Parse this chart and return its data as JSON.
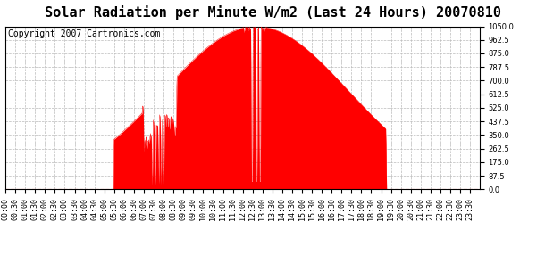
{
  "title": "Solar Radiation per Minute W/m2 (Last 24 Hours) 20070810",
  "copyright_text": "Copyright 2007 Cartronics.com",
  "fill_color": "#FF0000",
  "line_color": "#FF0000",
  "background_color": "#FFFFFF",
  "grid_color": "#BBBBBB",
  "dashed_line_color": "#FF0000",
  "ylim": [
    0.0,
    1050.0
  ],
  "yticks": [
    0.0,
    87.5,
    175.0,
    262.5,
    350.0,
    437.5,
    525.0,
    612.5,
    700.0,
    787.5,
    875.0,
    962.5,
    1050.0
  ],
  "title_fontsize": 11,
  "copyright_fontsize": 7,
  "tick_fontsize": 6.0
}
